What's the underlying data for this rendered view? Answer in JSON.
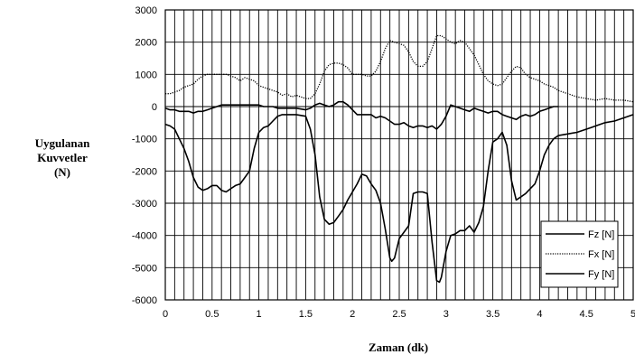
{
  "chart_data": {
    "type": "line",
    "title": "",
    "xlabel": "Zaman (dk)",
    "ylabel_lines": [
      "Uygulanan",
      "Kuvvetler",
      "(N)"
    ],
    "xlim": [
      0,
      5
    ],
    "ylim": [
      -6000,
      3000
    ],
    "x_ticks": [
      0,
      0.5,
      1,
      1.5,
      2,
      2.5,
      3,
      3.5,
      4,
      4.5,
      5
    ],
    "x_tick_labels": [
      "0",
      "0.5",
      "1",
      "1.5",
      "2",
      "2.5",
      "3",
      "3.5",
      "4",
      "4.5",
      "5"
    ],
    "y_ticks": [
      -6000,
      -5000,
      -4000,
      -3000,
      -2000,
      -1000,
      0,
      1000,
      2000,
      3000
    ],
    "y_tick_labels": [
      "-6000",
      "-5000",
      "-4000",
      "-3000",
      "-2000",
      "-1000",
      "0",
      "1000",
      "2000",
      "3000"
    ],
    "x_minor_step": 0.1,
    "grid": true,
    "legend_position": "bottom-right",
    "series": [
      {
        "name": "Fz [N]",
        "style": "solid",
        "color": "#000000",
        "points": [
          [
            0,
            -550
          ],
          [
            0.05,
            -600
          ],
          [
            0.1,
            -700
          ],
          [
            0.15,
            -1000
          ],
          [
            0.2,
            -1300
          ],
          [
            0.25,
            -1700
          ],
          [
            0.3,
            -2200
          ],
          [
            0.35,
            -2500
          ],
          [
            0.4,
            -2600
          ],
          [
            0.45,
            -2550
          ],
          [
            0.5,
            -2450
          ],
          [
            0.55,
            -2450
          ],
          [
            0.6,
            -2600
          ],
          [
            0.65,
            -2650
          ],
          [
            0.7,
            -2550
          ],
          [
            0.75,
            -2450
          ],
          [
            0.8,
            -2400
          ],
          [
            0.85,
            -2200
          ],
          [
            0.9,
            -2000
          ],
          [
            0.95,
            -1300
          ],
          [
            1.0,
            -800
          ],
          [
            1.05,
            -650
          ],
          [
            1.1,
            -600
          ],
          [
            1.15,
            -450
          ],
          [
            1.2,
            -300
          ],
          [
            1.25,
            -250
          ],
          [
            1.3,
            -250
          ],
          [
            1.4,
            -250
          ],
          [
            1.5,
            -300
          ],
          [
            1.55,
            -700
          ],
          [
            1.6,
            -1500
          ],
          [
            1.65,
            -2800
          ],
          [
            1.7,
            -3500
          ],
          [
            1.75,
            -3650
          ],
          [
            1.8,
            -3600
          ],
          [
            1.85,
            -3400
          ],
          [
            1.9,
            -3200
          ],
          [
            1.95,
            -2900
          ],
          [
            2.0,
            -2650
          ],
          [
            2.05,
            -2400
          ],
          [
            2.1,
            -2100
          ],
          [
            2.15,
            -2150
          ],
          [
            2.2,
            -2400
          ],
          [
            2.25,
            -2600
          ],
          [
            2.3,
            -3000
          ],
          [
            2.35,
            -3800
          ],
          [
            2.4,
            -4700
          ],
          [
            2.42,
            -4800
          ],
          [
            2.45,
            -4700
          ],
          [
            2.5,
            -4100
          ],
          [
            2.55,
            -3900
          ],
          [
            2.6,
            -3700
          ],
          [
            2.65,
            -2700
          ],
          [
            2.7,
            -2650
          ],
          [
            2.75,
            -2650
          ],
          [
            2.8,
            -2700
          ],
          [
            2.85,
            -4200
          ],
          [
            2.9,
            -5400
          ],
          [
            2.93,
            -5450
          ],
          [
            2.95,
            -5300
          ],
          [
            3.0,
            -4500
          ],
          [
            3.05,
            -4000
          ],
          [
            3.1,
            -3950
          ],
          [
            3.15,
            -3850
          ],
          [
            3.2,
            -3850
          ],
          [
            3.25,
            -3700
          ],
          [
            3.3,
            -3900
          ],
          [
            3.35,
            -3600
          ],
          [
            3.4,
            -3100
          ],
          [
            3.45,
            -2000
          ],
          [
            3.5,
            -1100
          ],
          [
            3.55,
            -1000
          ],
          [
            3.6,
            -800
          ],
          [
            3.65,
            -1200
          ],
          [
            3.7,
            -2300
          ],
          [
            3.75,
            -2900
          ],
          [
            3.8,
            -2800
          ],
          [
            3.85,
            -2700
          ],
          [
            3.9,
            -2550
          ],
          [
            3.95,
            -2400
          ],
          [
            4.0,
            -2000
          ],
          [
            4.05,
            -1500
          ],
          [
            4.1,
            -1200
          ],
          [
            4.15,
            -1000
          ],
          [
            4.2,
            -900
          ],
          [
            4.3,
            -850
          ],
          [
            4.4,
            -800
          ],
          [
            4.5,
            -700
          ],
          [
            4.55,
            -650
          ],
          [
            4.6,
            -600
          ],
          [
            4.7,
            -500
          ],
          [
            4.8,
            -450
          ],
          [
            4.9,
            -350
          ],
          [
            5.0,
            -250
          ]
        ]
      },
      {
        "name": "Fx [N]",
        "style": "dotted",
        "color": "#000000",
        "points": [
          [
            0,
            400
          ],
          [
            0.05,
            400
          ],
          [
            0.1,
            450
          ],
          [
            0.15,
            500
          ],
          [
            0.2,
            600
          ],
          [
            0.25,
            650
          ],
          [
            0.3,
            700
          ],
          [
            0.35,
            850
          ],
          [
            0.4,
            950
          ],
          [
            0.45,
            1000
          ],
          [
            0.5,
            1000
          ],
          [
            0.55,
            1000
          ],
          [
            0.6,
            1000
          ],
          [
            0.65,
            1000
          ],
          [
            0.7,
            950
          ],
          [
            0.75,
            900
          ],
          [
            0.8,
            800
          ],
          [
            0.85,
            900
          ],
          [
            0.9,
            850
          ],
          [
            0.95,
            800
          ],
          [
            1.0,
            650
          ],
          [
            1.05,
            600
          ],
          [
            1.1,
            550
          ],
          [
            1.15,
            500
          ],
          [
            1.2,
            450
          ],
          [
            1.25,
            350
          ],
          [
            1.3,
            400
          ],
          [
            1.35,
            300
          ],
          [
            1.4,
            350
          ],
          [
            1.45,
            300
          ],
          [
            1.5,
            250
          ],
          [
            1.55,
            250
          ],
          [
            1.6,
            400
          ],
          [
            1.65,
            700
          ],
          [
            1.7,
            1100
          ],
          [
            1.75,
            1300
          ],
          [
            1.8,
            1350
          ],
          [
            1.85,
            1350
          ],
          [
            1.9,
            1300
          ],
          [
            1.95,
            1200
          ],
          [
            2.0,
            1000
          ],
          [
            2.05,
            1000
          ],
          [
            2.1,
            1000
          ],
          [
            2.15,
            950
          ],
          [
            2.2,
            950
          ],
          [
            2.25,
            1100
          ],
          [
            2.3,
            1400
          ],
          [
            2.35,
            1800
          ],
          [
            2.4,
            2050
          ],
          [
            2.45,
            2000
          ],
          [
            2.5,
            1950
          ],
          [
            2.55,
            1900
          ],
          [
            2.6,
            1700
          ],
          [
            2.65,
            1400
          ],
          [
            2.7,
            1250
          ],
          [
            2.75,
            1250
          ],
          [
            2.8,
            1400
          ],
          [
            2.85,
            1800
          ],
          [
            2.9,
            2200
          ],
          [
            2.95,
            2200
          ],
          [
            3.0,
            2100
          ],
          [
            3.05,
            2000
          ],
          [
            3.1,
            1950
          ],
          [
            3.15,
            2050
          ],
          [
            3.2,
            2000
          ],
          [
            3.25,
            1800
          ],
          [
            3.3,
            1600
          ],
          [
            3.35,
            1300
          ],
          [
            3.4,
            1000
          ],
          [
            3.45,
            800
          ],
          [
            3.5,
            700
          ],
          [
            3.55,
            650
          ],
          [
            3.6,
            700
          ],
          [
            3.65,
            900
          ],
          [
            3.7,
            1100
          ],
          [
            3.75,
            1250
          ],
          [
            3.8,
            1200
          ],
          [
            3.85,
            1000
          ],
          [
            3.9,
            900
          ],
          [
            3.95,
            850
          ],
          [
            4.0,
            800
          ],
          [
            4.05,
            700
          ],
          [
            4.1,
            650
          ],
          [
            4.15,
            600
          ],
          [
            4.2,
            500
          ],
          [
            4.3,
            400
          ],
          [
            4.4,
            300
          ],
          [
            4.5,
            250
          ],
          [
            4.6,
            200
          ],
          [
            4.7,
            250
          ],
          [
            4.8,
            200
          ],
          [
            4.9,
            200
          ],
          [
            5.0,
            150
          ]
        ]
      },
      {
        "name": "Fy [N]",
        "style": "solid",
        "color": "#000000",
        "points": [
          [
            0,
            -50
          ],
          [
            0.05,
            -100
          ],
          [
            0.1,
            -100
          ],
          [
            0.15,
            -150
          ],
          [
            0.2,
            -150
          ],
          [
            0.25,
            -150
          ],
          [
            0.3,
            -200
          ],
          [
            0.35,
            -150
          ],
          [
            0.4,
            -150
          ],
          [
            0.45,
            -100
          ],
          [
            0.5,
            -50
          ],
          [
            0.55,
            0
          ],
          [
            0.6,
            50
          ],
          [
            0.65,
            50
          ],
          [
            0.7,
            50
          ],
          [
            0.75,
            50
          ],
          [
            0.8,
            50
          ],
          [
            0.85,
            50
          ],
          [
            0.9,
            50
          ],
          [
            0.95,
            50
          ],
          [
            1.0,
            50
          ],
          [
            1.05,
            0
          ],
          [
            1.1,
            0
          ],
          [
            1.15,
            0
          ],
          [
            1.2,
            -50
          ],
          [
            1.3,
            -50
          ],
          [
            1.4,
            -50
          ],
          [
            1.5,
            -100
          ],
          [
            1.55,
            -50
          ],
          [
            1.6,
            50
          ],
          [
            1.65,
            100
          ],
          [
            1.7,
            50
          ],
          [
            1.75,
            0
          ],
          [
            1.8,
            50
          ],
          [
            1.85,
            150
          ],
          [
            1.9,
            150
          ],
          [
            1.95,
            50
          ],
          [
            2.0,
            -100
          ],
          [
            2.05,
            -250
          ],
          [
            2.1,
            -250
          ],
          [
            2.2,
            -250
          ],
          [
            2.25,
            -350
          ],
          [
            2.3,
            -300
          ],
          [
            2.35,
            -350
          ],
          [
            2.4,
            -450
          ],
          [
            2.45,
            -550
          ],
          [
            2.5,
            -550
          ],
          [
            2.55,
            -500
          ],
          [
            2.6,
            -600
          ],
          [
            2.65,
            -650
          ],
          [
            2.7,
            -600
          ],
          [
            2.75,
            -600
          ],
          [
            2.8,
            -650
          ],
          [
            2.85,
            -600
          ],
          [
            2.9,
            -700
          ],
          [
            2.95,
            -550
          ],
          [
            3.0,
            -300
          ],
          [
            3.05,
            50
          ],
          [
            3.1,
            0
          ],
          [
            3.15,
            -50
          ],
          [
            3.2,
            -100
          ],
          [
            3.25,
            -150
          ],
          [
            3.3,
            -50
          ],
          [
            3.35,
            -100
          ],
          [
            3.4,
            -150
          ],
          [
            3.45,
            -200
          ],
          [
            3.5,
            -150
          ],
          [
            3.55,
            -150
          ],
          [
            3.6,
            -250
          ],
          [
            3.65,
            -300
          ],
          [
            3.7,
            -350
          ],
          [
            3.75,
            -400
          ],
          [
            3.8,
            -300
          ],
          [
            3.85,
            -250
          ],
          [
            3.9,
            -300
          ],
          [
            3.95,
            -250
          ],
          [
            4.0,
            -150
          ],
          [
            4.05,
            -100
          ],
          [
            4.1,
            -50
          ],
          [
            4.15,
            0
          ],
          [
            4.2,
            0
          ]
        ]
      }
    ]
  }
}
